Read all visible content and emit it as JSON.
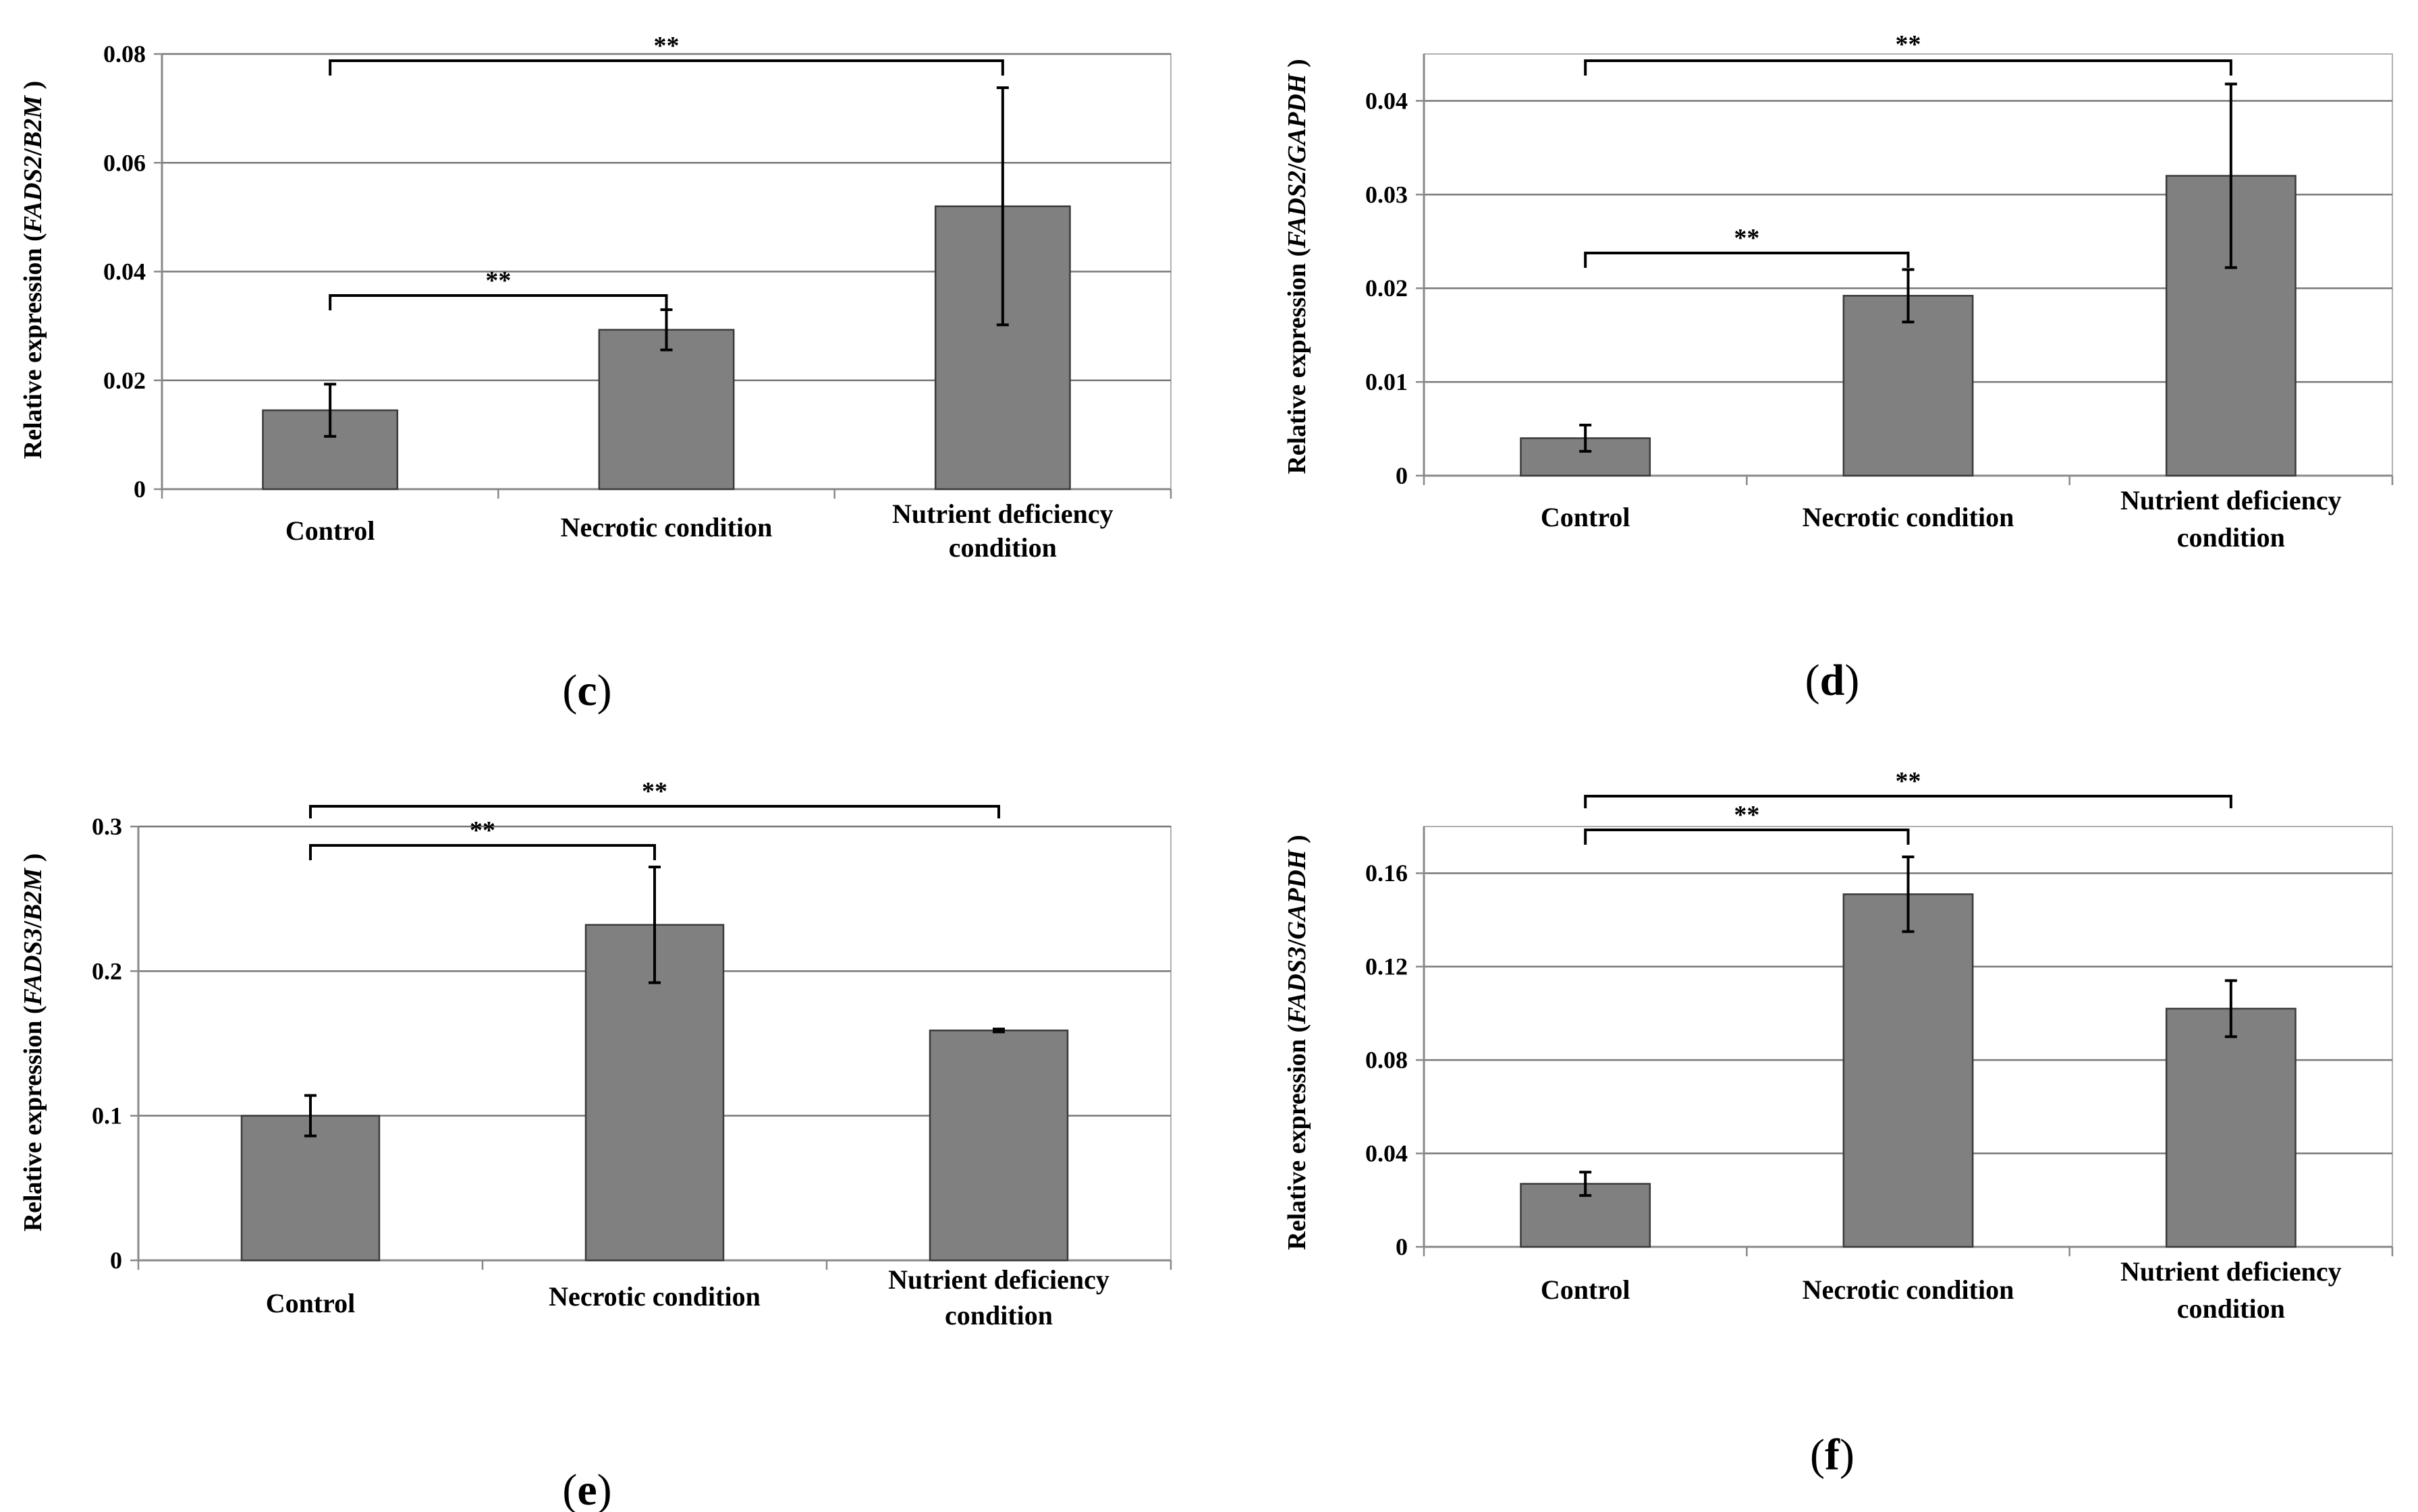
{
  "figure": {
    "categories": [
      "Control",
      "Necrotic condition",
      "Nutrient deficiency condition"
    ]
  },
  "chart_data": [
    {
      "panel": "c",
      "type": "bar",
      "panel_label": {
        "open": "(",
        "letter": "c",
        "close": ")"
      },
      "ylabel": {
        "prefix": "Relative expression (",
        "gene": "FADS2",
        "slash": "/",
        "ref": "B2M",
        "suffix": ")"
      },
      "categories": [
        "Control",
        "Necrotic condition",
        "Nutrient deficiency condition"
      ],
      "values": [
        0.0145,
        0.0293,
        0.052
      ],
      "errors": [
        0.0048,
        0.0037,
        0.0218
      ],
      "ylim": [
        0,
        0.08
      ],
      "yticks": [
        "0",
        "0.02",
        "0.04",
        "0.06",
        "0.08"
      ],
      "ytick_values": [
        0,
        0.02,
        0.04,
        0.06,
        0.08
      ],
      "grid": true,
      "significance": [
        {
          "from": 0,
          "to": 1,
          "label": "**"
        },
        {
          "from": 0,
          "to": 2,
          "label": "**"
        }
      ]
    },
    {
      "panel": "d",
      "type": "bar",
      "panel_label": {
        "open": "(",
        "letter": "d",
        "close": ")"
      },
      "ylabel": {
        "prefix": "Relative expression (",
        "gene": "FADS2",
        "slash": "/",
        "ref": "GAPDH",
        "suffix": ")"
      },
      "categories": [
        "Control",
        "Necrotic condition",
        "Nutrient deficiency condition"
      ],
      "values": [
        0.004,
        0.0192,
        0.032
      ],
      "errors": [
        0.0014,
        0.0028,
        0.0098
      ],
      "ylim": [
        0,
        0.045
      ],
      "yticks": [
        "0",
        "0.01",
        "0.02",
        "0.03",
        "0.04"
      ],
      "ytick_values": [
        0,
        0.01,
        0.02,
        0.03,
        0.04
      ],
      "grid": true,
      "significance": [
        {
          "from": 0,
          "to": 1,
          "label": "**"
        },
        {
          "from": 0,
          "to": 2,
          "label": "**"
        }
      ]
    },
    {
      "panel": "e",
      "type": "bar",
      "panel_label": {
        "open": "(",
        "letter": "e",
        "close": ")"
      },
      "ylabel": {
        "prefix": "Relative expression (",
        "gene": "FADS3",
        "slash": "/",
        "ref": "B2M",
        "suffix": ")"
      },
      "categories": [
        "Control",
        "Necrotic condition",
        "Nutrient deficiency condition"
      ],
      "values": [
        0.1,
        0.232,
        0.159
      ],
      "errors": [
        0.014,
        0.04,
        0.001
      ],
      "ylim": [
        0,
        0.3
      ],
      "yticks": [
        "0",
        "0.1",
        "0.2",
        "0.3"
      ],
      "ytick_values": [
        0,
        0.1,
        0.2,
        0.3
      ],
      "grid": true,
      "significance": [
        {
          "from": 0,
          "to": 1,
          "label": "**"
        },
        {
          "from": 0,
          "to": 2,
          "label": "**"
        }
      ]
    },
    {
      "panel": "f",
      "type": "bar",
      "panel_label": {
        "open": "(",
        "letter": "f",
        "close": ")"
      },
      "ylabel": {
        "prefix": "Relative expression (",
        "gene": "FADS3",
        "slash": "/",
        "ref": "GAPDH",
        "suffix": ")"
      },
      "categories": [
        "Control",
        "Necrotic condition",
        "Nutrient deficiency condition"
      ],
      "values": [
        0.027,
        0.151,
        0.102
      ],
      "errors": [
        0.005,
        0.016,
        0.012
      ],
      "ylim": [
        0,
        0.18
      ],
      "yticks": [
        "0",
        "0.04",
        "0.08",
        "0.12",
        "0.16"
      ],
      "ytick_values": [
        0,
        0.04,
        0.08,
        0.12,
        0.16
      ],
      "grid": true,
      "significance": [
        {
          "from": 0,
          "to": 1,
          "label": "**"
        },
        {
          "from": 0,
          "to": 2,
          "label": "**"
        }
      ]
    }
  ],
  "style": {
    "bar_color": "#808080",
    "bar_edge": "#3a3a3a",
    "grid_color": "#777777",
    "axis_color": "#888888",
    "text_color": "#000000"
  }
}
